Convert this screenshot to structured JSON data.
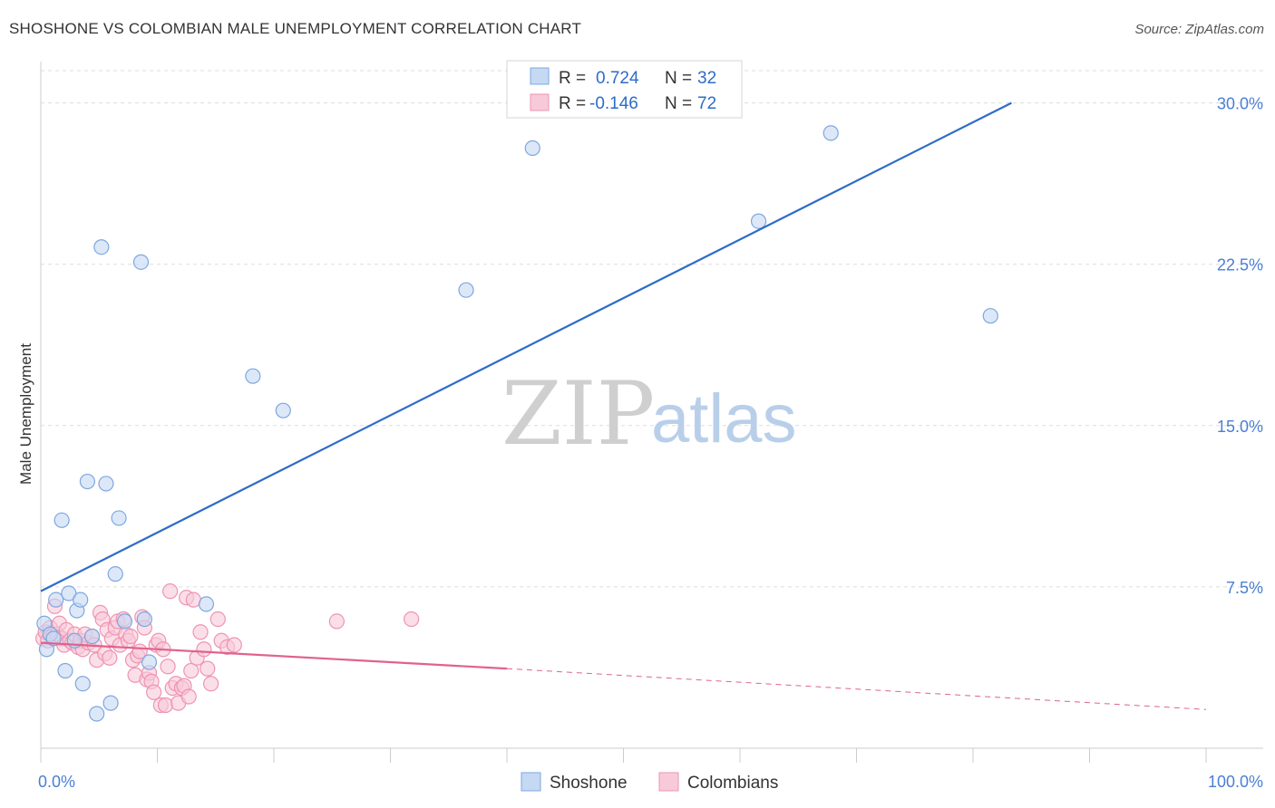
{
  "title": "SHOSHONE VS COLOMBIAN MALE UNEMPLOYMENT CORRELATION CHART",
  "source": "Source: ZipAtlas.com",
  "watermark": {
    "zip": "ZIP",
    "atlas": "atlas"
  },
  "chart_data": {
    "type": "scatter",
    "title": "SHOSHONE VS COLOMBIAN MALE UNEMPLOYMENT CORRELATION CHART",
    "xlabel": "",
    "ylabel": "Male Unemployment",
    "xlim": [
      0,
      100
    ],
    "ylim": [
      0,
      31.5
    ],
    "x_ticks_labels": [
      "0.0%",
      "100.0%"
    ],
    "y_ticks": [
      7.5,
      15.0,
      22.5,
      30.0
    ],
    "y_ticks_labels": [
      "7.5%",
      "15.0%",
      "22.5%",
      "30.0%"
    ],
    "grid": true,
    "legend": {
      "placement": "top-center",
      "entries": [
        {
          "r_label": "R =",
          "r_value": "0.724",
          "n_label": "N =",
          "n_value": "32"
        },
        {
          "r_label": "R =",
          "r_value": "-0.146",
          "n_label": "N =",
          "n_value": "72"
        }
      ]
    },
    "series": [
      {
        "name": "Shoshone",
        "color": "#7ea7e0",
        "fill": "#c5d9f3",
        "line_color": "#2d6cc8",
        "trend": {
          "x0": 0,
          "y0": 7.3,
          "x1": 83.3,
          "y1": 30.0,
          "dashed_to": null
        },
        "points": [
          [
            0.3,
            5.8
          ],
          [
            0.5,
            4.6
          ],
          [
            1.3,
            6.9
          ],
          [
            1.8,
            10.6
          ],
          [
            2.1,
            3.6
          ],
          [
            2.4,
            7.2
          ],
          [
            3.1,
            6.4
          ],
          [
            3.4,
            6.9
          ],
          [
            3.6,
            3.0
          ],
          [
            4.0,
            12.4
          ],
          [
            4.8,
            1.6
          ],
          [
            5.2,
            23.3
          ],
          [
            5.6,
            12.3
          ],
          [
            6.0,
            2.1
          ],
          [
            6.4,
            8.1
          ],
          [
            6.7,
            10.7
          ],
          [
            7.2,
            5.9
          ],
          [
            8.6,
            22.6
          ],
          [
            8.9,
            6.0
          ],
          [
            9.3,
            4.0
          ],
          [
            14.2,
            6.7
          ],
          [
            18.2,
            17.3
          ],
          [
            20.8,
            15.7
          ],
          [
            36.5,
            21.3
          ],
          [
            42.2,
            27.9
          ],
          [
            61.6,
            24.5
          ],
          [
            67.8,
            28.6
          ],
          [
            81.5,
            20.1
          ],
          [
            0.8,
            5.3
          ],
          [
            1.1,
            5.1
          ],
          [
            2.9,
            5.0
          ],
          [
            4.4,
            5.2
          ]
        ]
      },
      {
        "name": "Colombians",
        "color": "#ee94b1",
        "fill": "#f8cad9",
        "line_color": "#e0628c",
        "trend": {
          "x0": 0,
          "y0": 4.9,
          "x1": 40.0,
          "y1": 3.7,
          "dashed_to": [
            100,
            1.8
          ]
        },
        "points": [
          [
            0.2,
            5.1
          ],
          [
            0.4,
            5.4
          ],
          [
            0.6,
            5.0
          ],
          [
            0.8,
            5.6
          ],
          [
            1.0,
            5.2
          ],
          [
            1.2,
            6.6
          ],
          [
            1.4,
            5.3
          ],
          [
            1.6,
            5.8
          ],
          [
            1.8,
            5.1
          ],
          [
            2.0,
            4.8
          ],
          [
            2.2,
            5.5
          ],
          [
            2.5,
            5.0
          ],
          [
            2.7,
            4.9
          ],
          [
            2.9,
            5.3
          ],
          [
            3.2,
            4.7
          ],
          [
            3.4,
            5.0
          ],
          [
            3.6,
            4.6
          ],
          [
            3.8,
            5.3
          ],
          [
            4.1,
            4.9
          ],
          [
            4.4,
            5.2
          ],
          [
            4.6,
            4.8
          ],
          [
            4.8,
            4.1
          ],
          [
            5.1,
            6.3
          ],
          [
            5.3,
            6.0
          ],
          [
            5.5,
            4.4
          ],
          [
            5.7,
            5.5
          ],
          [
            5.9,
            4.2
          ],
          [
            6.1,
            5.1
          ],
          [
            6.4,
            5.6
          ],
          [
            6.6,
            5.9
          ],
          [
            6.8,
            4.8
          ],
          [
            7.1,
            6.0
          ],
          [
            7.3,
            5.3
          ],
          [
            7.5,
            5.0
          ],
          [
            7.7,
            5.2
          ],
          [
            7.9,
            4.1
          ],
          [
            8.1,
            3.4
          ],
          [
            8.3,
            4.3
          ],
          [
            8.5,
            4.5
          ],
          [
            8.7,
            6.1
          ],
          [
            8.9,
            5.6
          ],
          [
            9.1,
            3.2
          ],
          [
            9.3,
            3.5
          ],
          [
            9.5,
            3.1
          ],
          [
            9.7,
            2.6
          ],
          [
            9.9,
            4.8
          ],
          [
            10.1,
            5.0
          ],
          [
            10.3,
            2.0
          ],
          [
            10.5,
            4.6
          ],
          [
            10.7,
            2.0
          ],
          [
            10.9,
            3.8
          ],
          [
            11.1,
            7.3
          ],
          [
            11.3,
            2.8
          ],
          [
            11.6,
            3.0
          ],
          [
            11.8,
            2.1
          ],
          [
            12.1,
            2.8
          ],
          [
            12.3,
            2.9
          ],
          [
            12.5,
            7.0
          ],
          [
            12.7,
            2.4
          ],
          [
            12.9,
            3.6
          ],
          [
            13.1,
            6.9
          ],
          [
            13.4,
            4.2
          ],
          [
            13.7,
            5.4
          ],
          [
            14.0,
            4.6
          ],
          [
            14.3,
            3.7
          ],
          [
            14.6,
            3.0
          ],
          [
            15.2,
            6.0
          ],
          [
            15.5,
            5.0
          ],
          [
            16.0,
            4.7
          ],
          [
            16.6,
            4.8
          ],
          [
            25.4,
            5.9
          ],
          [
            31.8,
            6.0
          ]
        ]
      }
    ]
  },
  "bottom_legend": {
    "shoshone": "Shoshone",
    "colombians": "Colombians"
  }
}
